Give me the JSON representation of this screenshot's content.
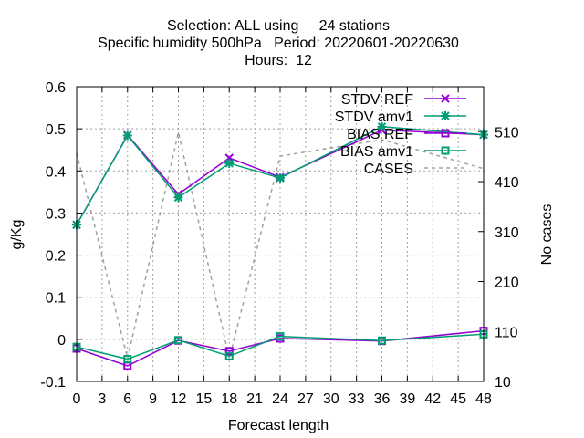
{
  "chart_data": {
    "type": "line",
    "title_lines": [
      "Selection: ALL using     24 stations",
      "Specific humidity 500hPa   Period: 20220601-20220630",
      "Hours:  12"
    ],
    "xlabel": "Forecast length",
    "ylabel": "g/Kg",
    "y2label": "No cases",
    "xlim": [
      0,
      48
    ],
    "ylim": [
      -0.1,
      0.6
    ],
    "y2lim": [
      10,
      600
    ],
    "xticks": [
      "0",
      "3",
      "6",
      "9",
      "12",
      "15",
      "18",
      "21",
      "24",
      "27",
      "30",
      "33",
      "36",
      "39",
      "42",
      "45",
      "48"
    ],
    "yticks": [
      "-0.1",
      "0",
      "0.1",
      "0.2",
      "0.3",
      "0.4",
      "0.5",
      "0.6"
    ],
    "y2ticks": [
      "10",
      "110",
      "210",
      "310",
      "410",
      "510"
    ],
    "grid": true,
    "legend_position": "top-right",
    "series": [
      {
        "name": "STDV REF",
        "axis": "y",
        "color": "#9400d3",
        "marker": "x",
        "x": [
          0,
          6,
          12,
          18,
          24,
          36,
          48
        ],
        "y": [
          0.272,
          0.485,
          0.345,
          0.431,
          0.385,
          0.497,
          0.486
        ]
      },
      {
        "name": "STDV amv1",
        "axis": "y",
        "color": "#009e73",
        "marker": "star",
        "x": [
          0,
          6,
          12,
          18,
          24,
          36,
          48
        ],
        "y": [
          0.272,
          0.484,
          0.337,
          0.418,
          0.383,
          0.505,
          0.486
        ]
      },
      {
        "name": "BIAS REF",
        "axis": "y",
        "color": "#9400d3",
        "marker": "square",
        "x": [
          0,
          6,
          12,
          18,
          24,
          36,
          48
        ],
        "y": [
          -0.022,
          -0.063,
          -0.003,
          -0.028,
          0.002,
          -0.004,
          0.02
        ]
      },
      {
        "name": "BIAS amv1",
        "axis": "y",
        "color": "#009e73",
        "marker": "square",
        "x": [
          0,
          6,
          12,
          18,
          24,
          36,
          48
        ],
        "y": [
          -0.018,
          -0.047,
          -0.002,
          -0.04,
          0.007,
          -0.003,
          0.012
        ]
      },
      {
        "name": "CASES",
        "axis": "y2",
        "color": "#a0a0a0",
        "marker": "none",
        "dash": true,
        "x": [
          0,
          6,
          12,
          18,
          24,
          36,
          48
        ],
        "y": [
          467,
          56,
          509,
          56,
          461,
          494,
          436
        ]
      }
    ]
  }
}
